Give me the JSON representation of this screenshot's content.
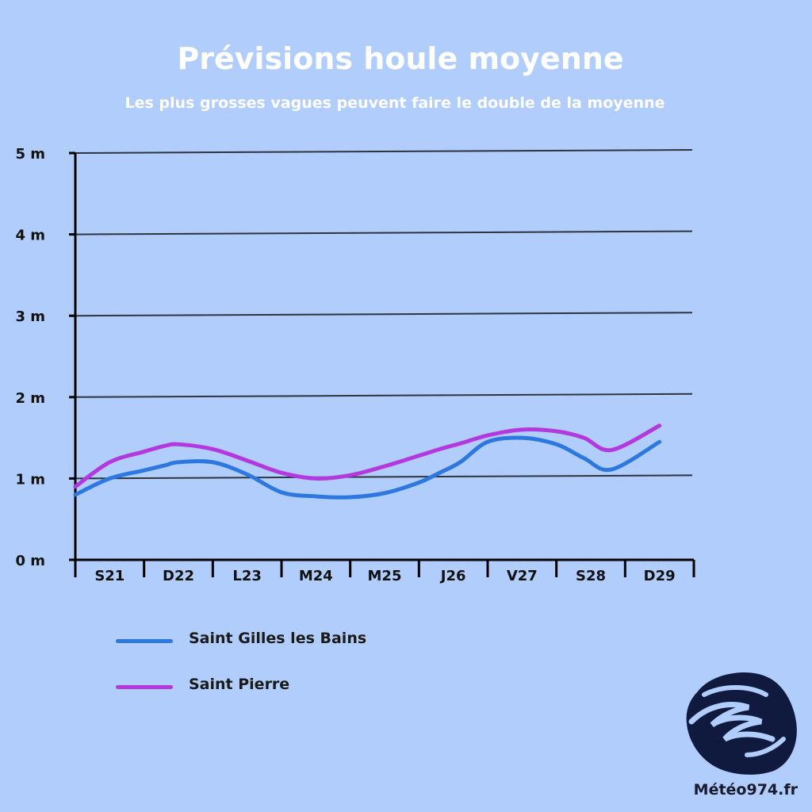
{
  "title": "Prévisions houle moyenne",
  "subtitle": "Les plus grosses vagues peuvent faire le double de la moyenne",
  "brand": "Météo974.fr",
  "colors": {
    "background": "#b0cdfb",
    "grid": "#2e3440",
    "axis": "#000000",
    "logo": "#101a3e"
  },
  "chart_data": {
    "type": "line",
    "title": "Prévisions houle moyenne",
    "subtitle": "Les plus grosses vagues peuvent faire le double de la moyenne",
    "categories": [
      "S21",
      "D22",
      "L23",
      "M24",
      "M25",
      "J26",
      "V27",
      "S28",
      "D29"
    ],
    "y_ticks": [
      "0 m",
      "1 m",
      "2 m",
      "3 m",
      "4 m",
      "5 m"
    ],
    "ylim": [
      0,
      5
    ],
    "unit": "m",
    "grid": true,
    "legend_position": "bottom-left",
    "x": [
      0,
      0.5,
      1,
      1.3,
      1.5,
      2,
      2.5,
      3,
      3.5,
      4,
      4.5,
      5,
      5.3,
      5.6,
      6,
      6.5,
      7,
      7.4,
      7.8,
      8.5
    ],
    "series": [
      {
        "name": "Saint Gilles les Bains",
        "color": "#2d78e0",
        "values": [
          0.8,
          1.0,
          1.1,
          1.16,
          1.2,
          1.2,
          1.05,
          0.83,
          0.78,
          0.77,
          0.82,
          0.95,
          1.07,
          1.2,
          1.45,
          1.5,
          1.42,
          1.25,
          1.11,
          1.45
        ]
      },
      {
        "name": "Saint Pierre",
        "color": "#b438e0",
        "values": [
          0.9,
          1.2,
          1.33,
          1.4,
          1.42,
          1.36,
          1.22,
          1.07,
          1.0,
          1.04,
          1.15,
          1.28,
          1.36,
          1.43,
          1.53,
          1.6,
          1.58,
          1.5,
          1.35,
          1.65
        ]
      }
    ]
  }
}
